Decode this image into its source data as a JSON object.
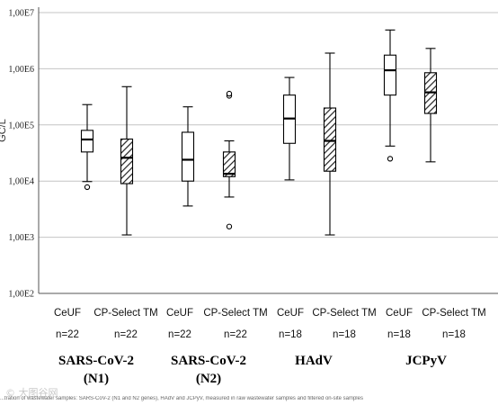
{
  "chart_data": {
    "type": "box",
    "ylabel": "GC/L",
    "yscale": "log",
    "ylim": [
      100,
      10000000
    ],
    "yticks": [
      {
        "value": 100,
        "label": "1,00E2"
      },
      {
        "value": 1000,
        "label": "1,00E3"
      },
      {
        "value": 10000,
        "label": "1,00E4"
      },
      {
        "value": 100000,
        "label": "1,00E5"
      },
      {
        "value": 1000000,
        "label": "1,00E6"
      },
      {
        "value": 10000000,
        "label": "1,00E7"
      }
    ],
    "grid": true,
    "groups": [
      {
        "name_line1": "SARS-CoV-2",
        "name_line2": "(N1)"
      },
      {
        "name_line1": "SARS-CoV-2",
        "name_line2": "(N2)"
      },
      {
        "name_line1": "HAdV",
        "name_line2": ""
      },
      {
        "name_line1": "JCPyV",
        "name_line2": ""
      }
    ],
    "boxes": [
      {
        "group": 0,
        "method": "CeUF",
        "n": "n=22",
        "hatched": false,
        "min": 9800,
        "q1": 33000,
        "median": 55000,
        "q3": 80000,
        "max": 230000,
        "outliers": [
          7800
        ]
      },
      {
        "group": 0,
        "method": "CP-Select TM",
        "n": "n=22",
        "hatched": true,
        "min": 1100,
        "q1": 9000,
        "median": 26000,
        "q3": 56000,
        "max": 480000,
        "outliers": []
      },
      {
        "group": 1,
        "method": "CeUF",
        "n": "n=22",
        "hatched": false,
        "min": 3600,
        "q1": 10000,
        "median": 24000,
        "q3": 74000,
        "max": 210000,
        "outliers": []
      },
      {
        "group": 1,
        "method": "CP-Select TM",
        "n": "n=22",
        "hatched": true,
        "min": 5200,
        "q1": 12000,
        "median": 13500,
        "q3": 33000,
        "max": 52000,
        "outliers": [
          1550,
          330000,
          360000
        ]
      },
      {
        "group": 2,
        "method": "CeUF",
        "n": "n=18",
        "hatched": false,
        "min": 10500,
        "q1": 47000,
        "median": 130000,
        "q3": 340000,
        "max": 700000,
        "outliers": []
      },
      {
        "group": 2,
        "method": "CP-Select TM",
        "n": "n=18",
        "hatched": true,
        "min": 1100,
        "q1": 15000,
        "median": 52000,
        "q3": 200000,
        "max": 1900000,
        "outliers": []
      },
      {
        "group": 3,
        "method": "CeUF",
        "n": "n=18",
        "hatched": false,
        "min": 42000,
        "q1": 340000,
        "median": 940000,
        "q3": 1750000,
        "max": 4900000,
        "outliers": [
          25000
        ]
      },
      {
        "group": 3,
        "method": "CP-Select TM",
        "n": "n=18",
        "hatched": true,
        "min": 22000,
        "q1": 160000,
        "median": 380000,
        "q3": 850000,
        "max": 2300000,
        "outliers": []
      }
    ]
  },
  "caption": "...tration of wastewater samples: SARS-CoV-2 (N1 and N2 genes), HAdV and JCPyV, measured in raw wastewater samples and filtered on-site samples",
  "watermark": "© 大图谷网"
}
